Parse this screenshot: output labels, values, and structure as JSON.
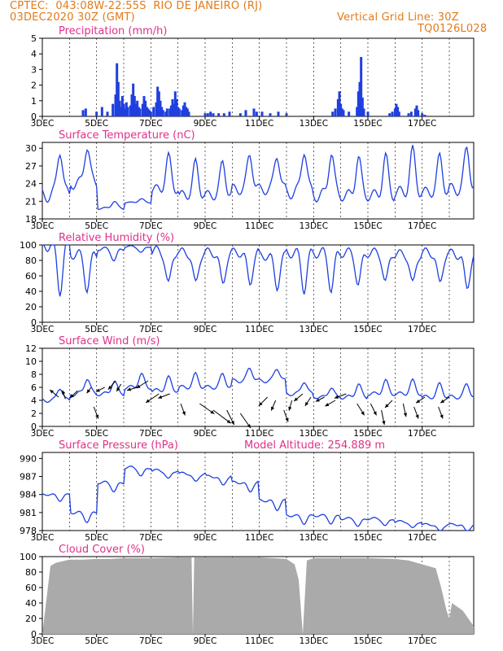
{
  "header": {
    "line1": "CPTEC:  043:08W-22:55S  RIO DE JANEIRO (RJ)",
    "line2": "03DEC2020 30Z (GMT)",
    "grid_note": "Vertical Grid Line: 30Z",
    "run_id": "TQ0126L028"
  },
  "colors": {
    "header": "#e07b1a",
    "title": "#e0308a",
    "line": "#1f3fe0",
    "bar": "#1f3fe0",
    "cloud": "#aaaaaa",
    "arrow": "#000000"
  },
  "x_ticks": [
    "3DEC",
    "5DEC",
    "7DEC",
    "9DEC",
    "11DEC",
    "13DEC",
    "15DEC",
    "17DEC"
  ],
  "chart_data": [
    {
      "type": "bar",
      "title": "Precipitation (mm/h)",
      "ylim": [
        0,
        5
      ],
      "yticks": [
        "0",
        "1",
        "2",
        "3",
        "4",
        "5"
      ],
      "x_range_days": [
        3,
        18.9
      ],
      "bars": [
        [
          4.5,
          0.4
        ],
        [
          4.6,
          0.5
        ],
        [
          5.0,
          0.3
        ],
        [
          5.2,
          0.6
        ],
        [
          5.4,
          0.3
        ],
        [
          5.6,
          0.8
        ],
        [
          5.7,
          1.4
        ],
        [
          5.75,
          3.4
        ],
        [
          5.8,
          2.2
        ],
        [
          5.85,
          1.0
        ],
        [
          5.9,
          0.6
        ],
        [
          5.95,
          1.3
        ],
        [
          6.0,
          0.8
        ],
        [
          6.05,
          0.5
        ],
        [
          6.1,
          0.9
        ],
        [
          6.15,
          0.6
        ],
        [
          6.25,
          0.7
        ],
        [
          6.3,
          1.4
        ],
        [
          6.35,
          2.1
        ],
        [
          6.4,
          1.3
        ],
        [
          6.45,
          0.8
        ],
        [
          6.5,
          1.0
        ],
        [
          6.55,
          0.6
        ],
        [
          6.6,
          0.5
        ],
        [
          6.7,
          0.8
        ],
        [
          6.75,
          1.3
        ],
        [
          6.8,
          1.0
        ],
        [
          6.85,
          0.6
        ],
        [
          6.9,
          0.5
        ],
        [
          6.95,
          0.4
        ],
        [
          7.0,
          0.3
        ],
        [
          7.1,
          0.6
        ],
        [
          7.2,
          0.9
        ],
        [
          7.25,
          1.9
        ],
        [
          7.3,
          1.6
        ],
        [
          7.35,
          1.0
        ],
        [
          7.4,
          0.6
        ],
        [
          7.45,
          0.4
        ],
        [
          7.55,
          0.3
        ],
        [
          7.6,
          0.5
        ],
        [
          7.7,
          0.5
        ],
        [
          7.75,
          0.7
        ],
        [
          7.8,
          1.1
        ],
        [
          7.85,
          0.8
        ],
        [
          7.9,
          1.6
        ],
        [
          7.95,
          1.1
        ],
        [
          8.0,
          0.6
        ],
        [
          8.05,
          0.5
        ],
        [
          8.15,
          0.4
        ],
        [
          8.2,
          0.7
        ],
        [
          8.25,
          0.9
        ],
        [
          8.3,
          0.6
        ],
        [
          8.35,
          0.5
        ],
        [
          8.4,
          0.3
        ],
        [
          9.0,
          0.2
        ],
        [
          9.1,
          0.2
        ],
        [
          9.2,
          0.3
        ],
        [
          9.3,
          0.2
        ],
        [
          9.5,
          0.2
        ],
        [
          9.7,
          0.2
        ],
        [
          9.9,
          0.3
        ],
        [
          10.3,
          0.2
        ],
        [
          10.5,
          0.4
        ],
        [
          10.8,
          0.5
        ],
        [
          10.9,
          0.3
        ],
        [
          11.1,
          0.3
        ],
        [
          11.4,
          0.2
        ],
        [
          11.7,
          0.3
        ],
        [
          12.0,
          0.2
        ],
        [
          13.7,
          0.3
        ],
        [
          13.8,
          0.5
        ],
        [
          13.9,
          1.1
        ],
        [
          13.95,
          1.6
        ],
        [
          14.0,
          0.8
        ],
        [
          14.05,
          0.5
        ],
        [
          14.1,
          0.4
        ],
        [
          14.3,
          0.3
        ],
        [
          14.6,
          0.6
        ],
        [
          14.65,
          1.6
        ],
        [
          14.7,
          2.2
        ],
        [
          14.75,
          3.8
        ],
        [
          14.8,
          1.2
        ],
        [
          14.85,
          0.5
        ],
        [
          15.0,
          0.3
        ],
        [
          15.8,
          0.2
        ],
        [
          15.9,
          0.3
        ],
        [
          16.0,
          0.5
        ],
        [
          16.05,
          0.8
        ],
        [
          16.1,
          0.6
        ],
        [
          16.15,
          0.3
        ],
        [
          16.5,
          0.2
        ],
        [
          16.6,
          0.3
        ],
        [
          16.75,
          0.5
        ],
        [
          16.8,
          0.7
        ],
        [
          16.85,
          0.4
        ],
        [
          17.0,
          0.2
        ],
        [
          17.1,
          0.1
        ]
      ]
    },
    {
      "type": "line",
      "title": "Surface Temperature (nC)",
      "ylim": [
        18,
        31
      ],
      "yticks": [
        "18",
        "21",
        "24",
        "27",
        "30"
      ],
      "x_range_days": [
        3,
        18.9
      ],
      "shape": {
        "base": [
          22,
          24,
          19.8,
          20.8,
          23,
          22,
          22,
          23,
          23,
          22.5,
          22,
          22,
          22,
          22.5,
          22.5,
          23
        ],
        "amp": [
          8,
          6.5,
          1.2,
          0.6,
          5.5,
          5.5,
          5.5,
          6,
          6,
          7.5,
          7.5,
          6.5,
          6.5,
          7,
          6,
          7
        ]
      }
    },
    {
      "type": "line",
      "title": "Relative Humidity (%)",
      "ylim": [
        0,
        100
      ],
      "yticks": [
        "0",
        "20",
        "40",
        "60",
        "80",
        "100"
      ],
      "x_range_days": [
        3,
        18.9
      ],
      "shape": {
        "base": [
          100,
          88,
          95,
          98,
          92,
          90,
          90,
          90,
          86,
          90,
          90,
          90,
          90,
          88,
          90,
          88
        ],
        "amp": [
          58,
          44,
          15,
          8,
          45,
          42,
          42,
          40,
          40,
          47,
          47,
          42,
          40,
          40,
          42,
          45
        ]
      }
    },
    {
      "type": "line",
      "title": "Surface Wind (m/s)",
      "ylim": [
        0,
        12
      ],
      "yticks": [
        "0",
        "2",
        "4",
        "6",
        "8",
        "10",
        "12"
      ],
      "x_range_days": [
        3,
        18.9
      ],
      "arrows": [
        [
          3.6,
          4.5,
          -0.6,
          -0.5
        ],
        [
          3.85,
          4.2,
          -0.2,
          -0.6
        ],
        [
          4.3,
          5.5,
          -0.5,
          0.5
        ],
        [
          4.8,
          6.0,
          -0.3,
          0.4
        ],
        [
          4.9,
          3.0,
          0.3,
          0.8
        ],
        [
          5.3,
          6.0,
          -0.6,
          0.3
        ],
        [
          5.7,
          7.0,
          -0.5,
          0.6
        ],
        [
          5.9,
          6.5,
          -0.3,
          0.5
        ],
        [
          6.5,
          6.0,
          -0.7,
          0.2
        ],
        [
          6.9,
          7.0,
          -0.8,
          0.5
        ],
        [
          7.3,
          5.0,
          -0.9,
          0.6
        ],
        [
          7.7,
          5.0,
          -0.8,
          0.3
        ],
        [
          8.1,
          3.5,
          0.3,
          0.8
        ],
        [
          8.8,
          3.5,
          1.0,
          0.7
        ],
        [
          9.3,
          2.5,
          1.2,
          0.9
        ],
        [
          9.8,
          2.5,
          0.5,
          1.0
        ],
        [
          10.3,
          2.0,
          0.7,
          1.0
        ],
        [
          11.3,
          4.5,
          -0.6,
          0.6
        ],
        [
          11.6,
          4.0,
          -0.3,
          0.7
        ],
        [
          11.9,
          2.5,
          0.3,
          0.8
        ],
        [
          12.2,
          4.0,
          -0.2,
          0.7
        ],
        [
          12.6,
          5.0,
          -0.6,
          0.5
        ],
        [
          12.9,
          4.5,
          -0.4,
          0.6
        ],
        [
          13.4,
          4.5,
          -0.6,
          0.3
        ],
        [
          13.8,
          4.0,
          -0.7,
          0.4
        ],
        [
          14.2,
          5.0,
          -0.8,
          0.3
        ],
        [
          14.6,
          3.5,
          0.5,
          0.8
        ],
        [
          15.1,
          3.5,
          0.4,
          0.8
        ],
        [
          15.5,
          2.5,
          0.2,
          1.0
        ],
        [
          15.9,
          4.0,
          -0.5,
          0.5
        ],
        [
          16.3,
          3.5,
          0.2,
          0.9
        ],
        [
          16.7,
          3.0,
          0.3,
          0.8
        ],
        [
          17.1,
          4.5,
          -0.6,
          0.4
        ],
        [
          17.6,
          3.0,
          0.3,
          0.8
        ],
        [
          18.0,
          4.5,
          -0.6,
          0.4
        ]
      ],
      "shape": {
        "base": [
          4,
          5,
          5,
          6,
          5.5,
          6,
          6,
          7,
          7,
          5,
          4.5,
          4.5,
          5,
          5,
          4.5,
          4.5
        ],
        "amp": [
          2,
          2.5,
          2,
          2,
          2,
          2,
          2,
          2,
          2,
          2,
          1.5,
          2,
          2,
          2,
          2,
          2
        ]
      }
    },
    {
      "type": "line",
      "title": "Surface Pressure (hPa)",
      "model_altitude": "Model Altitude: 254.889 m",
      "ylim": [
        978,
        991
      ],
      "yticks": [
        "978",
        "981",
        "984",
        "987",
        "990"
      ],
      "x_range_days": [
        3,
        18.9
      ],
      "shape": {
        "base": [
          984,
          981,
          986,
          988.5,
          988,
          987.5,
          987,
          986,
          983,
          980.5,
          980.5,
          980,
          980,
          979.5,
          979,
          979
        ],
        "amp": [
          1,
          1.5,
          1.5,
          1.5,
          1.5,
          1.5,
          1.5,
          1.5,
          1.5,
          1.3,
          1.3,
          1.3,
          1.3,
          1.2,
          1.2,
          1.2
        ]
      }
    },
    {
      "type": "area",
      "title": "Cloud Cover (%)",
      "ylim": [
        0,
        100
      ],
      "yticks": [
        "0",
        "20",
        "40",
        "60",
        "80",
        "100"
      ],
      "x_range_days": [
        3,
        18.9
      ],
      "levels": [
        [
          3.0,
          0
        ],
        [
          3.3,
          88
        ],
        [
          3.5,
          92
        ],
        [
          4.0,
          96
        ],
        [
          4.5,
          96
        ],
        [
          5.0,
          97
        ],
        [
          5.5,
          97
        ],
        [
          6.0,
          98
        ],
        [
          7.0,
          98
        ],
        [
          8.0,
          99
        ],
        [
          8.5,
          99
        ],
        [
          8.55,
          0
        ],
        [
          8.6,
          99
        ],
        [
          9.0,
          99
        ],
        [
          10.0,
          99
        ],
        [
          11.0,
          99
        ],
        [
          11.5,
          98
        ],
        [
          12.0,
          97
        ],
        [
          12.3,
          90
        ],
        [
          12.45,
          70
        ],
        [
          12.6,
          0
        ],
        [
          12.75,
          95
        ],
        [
          13.0,
          98
        ],
        [
          14.0,
          98
        ],
        [
          15.0,
          98
        ],
        [
          16.0,
          97
        ],
        [
          16.5,
          95
        ],
        [
          17.0,
          90
        ],
        [
          17.5,
          85
        ],
        [
          17.7,
          60
        ],
        [
          17.9,
          30
        ],
        [
          18.0,
          20
        ],
        [
          18.1,
          40
        ],
        [
          18.5,
          30
        ],
        [
          18.9,
          10
        ]
      ]
    }
  ]
}
